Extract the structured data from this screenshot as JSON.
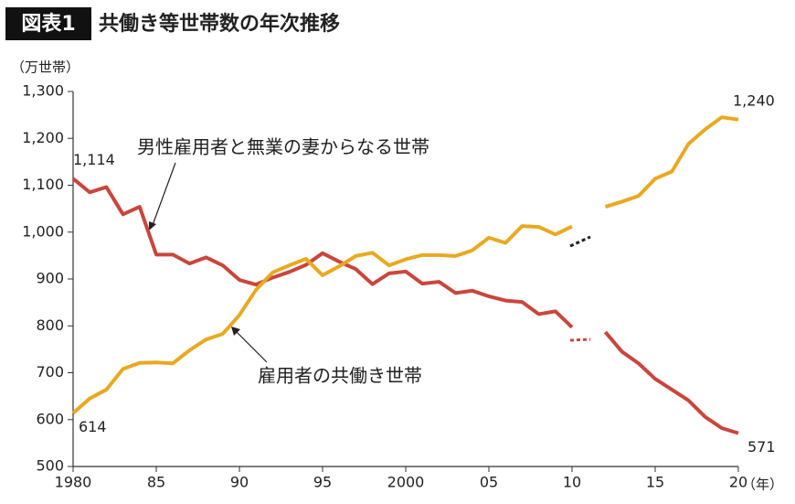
{
  "chart_data": {
    "type": "line",
    "badge": "図表1",
    "title": "共働き等世帯数の年次推移",
    "y_label": "（万世帯）",
    "x_label": "（年）",
    "x": [
      1980,
      1981,
      1982,
      1983,
      1984,
      1985,
      1986,
      1987,
      1988,
      1989,
      1990,
      1991,
      1992,
      1993,
      1994,
      1995,
      1996,
      1997,
      1998,
      1999,
      2000,
      2001,
      2002,
      2003,
      2004,
      2005,
      2006,
      2007,
      2008,
      2009,
      2010,
      2011,
      2012,
      2013,
      2014,
      2015,
      2016,
      2017,
      2018,
      2019,
      2020
    ],
    "series": [
      {
        "name": "男性雇用者と無業の妻からなる世帯",
        "color": "#c9463d",
        "values": [
          1114,
          1085,
          1096,
          1038,
          1054,
          952,
          952,
          933,
          946,
          929,
          898,
          888,
          903,
          915,
          930,
          955,
          937,
          921,
          889,
          912,
          916,
          890,
          894,
          870,
          875,
          863,
          854,
          851,
          825,
          831,
          797,
          null,
          787,
          745,
          720,
          687,
          664,
          641,
          606,
          582,
          571
        ],
        "value_labels": [
          "1,114",
          null,
          null,
          null,
          null,
          null,
          null,
          null,
          null,
          null,
          null,
          null,
          null,
          null,
          null,
          null,
          null,
          null,
          null,
          null,
          null,
          null,
          null,
          null,
          null,
          null,
          null,
          null,
          null,
          null,
          null,
          null,
          null,
          null,
          null,
          null,
          null,
          null,
          null,
          null,
          "571"
        ]
      },
      {
        "name": "雇用者の共働き世帯",
        "color": "#e8a922",
        "values": [
          614,
          645,
          664,
          708,
          721,
          722,
          720,
          748,
          771,
          783,
          823,
          877,
          914,
          929,
          943,
          908,
          927,
          949,
          956,
          929,
          942,
          951,
          951,
          949,
          961,
          988,
          977,
          1013,
          1011,
          995,
          1012,
          null,
          1054,
          1065,
          1077,
          1114,
          1129,
          1188,
          1219,
          1245,
          1240
        ],
        "value_labels": [
          "614",
          null,
          null,
          null,
          null,
          null,
          null,
          null,
          null,
          null,
          null,
          null,
          null,
          null,
          null,
          null,
          null,
          null,
          null,
          null,
          null,
          null,
          null,
          null,
          null,
          null,
          null,
          null,
          null,
          null,
          null,
          null,
          null,
          null,
          null,
          null,
          null,
          null,
          null,
          null,
          "1,240"
        ]
      }
    ],
    "xlim": [
      1980,
      2020
    ],
    "xticks": [
      1980,
      {
        "value": 1985,
        "label": "85"
      },
      {
        "value": 1990,
        "label": "90"
      },
      {
        "value": 1995,
        "label": "95"
      },
      2000,
      {
        "value": 2005,
        "label": "05"
      },
      {
        "value": 2010,
        "label": "10"
      },
      {
        "value": 2015,
        "label": "15"
      },
      {
        "value": 2020,
        "label": "20"
      }
    ],
    "ylim": [
      500,
      1300
    ],
    "yticks": [
      500,
      600,
      700,
      800,
      900,
      {
        "value": 1000,
        "label": "1,000"
      },
      {
        "value": 1100,
        "label": "1,100"
      },
      {
        "value": 1200,
        "label": "1,200"
      },
      {
        "value": 1300,
        "label": "1,300"
      }
    ],
    "grid": false
  }
}
